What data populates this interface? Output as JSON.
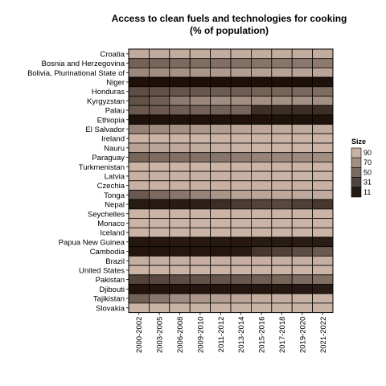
{
  "chart_data": {
    "type": "heatmap",
    "title": "Access to clean fuels and technologies for cooking",
    "subtitle": "(% of population)",
    "x_categories": [
      "2000-2002",
      "2003-2005",
      "2006-2008",
      "2009-2010",
      "2011-2012",
      "2013-2014",
      "2015-2016",
      "2017-2018",
      "2019-2020",
      "2021-2022"
    ],
    "y_categories": [
      "Croatia",
      "Bosnia and Herzegovina",
      "Bolivia, Plurinational State of",
      "Niger",
      "Honduras",
      "Kyrgyzstan",
      "Palau",
      "Ethiopia",
      "El Salvador",
      "Ireland",
      "Nauru",
      "Paraguay",
      "Turkmenistan",
      "Latvia",
      "Czechia",
      "Tonga",
      "Nepal",
      "Seychelles",
      "Monaco",
      "Iceland",
      "Papua New Guinea",
      "Cambodia",
      "Brazil",
      "United States",
      "Pakistan",
      "Djibouti",
      "Tajikistan",
      "Slovakia"
    ],
    "values": [
      [
        93,
        93,
        94,
        94,
        94,
        94,
        94,
        94,
        94,
        94
      ],
      [
        50,
        52,
        55,
        57,
        58,
        59,
        61,
        62,
        63,
        64
      ],
      [
        72,
        76,
        79,
        81,
        83,
        85,
        87,
        88,
        89,
        90
      ],
      [
        2,
        2,
        2,
        2,
        2,
        2,
        2,
        2,
        2,
        3
      ],
      [
        38,
        40,
        42,
        44,
        46,
        48,
        50,
        52,
        54,
        56
      ],
      [
        40,
        48,
        65,
        72,
        75,
        76,
        77,
        77,
        77,
        77
      ],
      [
        45,
        45,
        48,
        50,
        50,
        52,
        20,
        20,
        20,
        20
      ],
      [
        3,
        3,
        3,
        3,
        3,
        3,
        3,
        3,
        3,
        3
      ],
      [
        70,
        74,
        78,
        82,
        86,
        90,
        92,
        93,
        93,
        93
      ],
      [
        99,
        99,
        99,
        99,
        99,
        99,
        99,
        99,
        99,
        99
      ],
      [
        88,
        90,
        92,
        94,
        96,
        98,
        99,
        99,
        99,
        99
      ],
      [
        52,
        56,
        58,
        60,
        62,
        66,
        70,
        72,
        74,
        76
      ],
      [
        99,
        99,
        99,
        99,
        99,
        99,
        99,
        99,
        99,
        99
      ],
      [
        97,
        97,
        97,
        97,
        97,
        97,
        98,
        98,
        98,
        98
      ],
      [
        97,
        97,
        97,
        97,
        97,
        97,
        97,
        97,
        97,
        97
      ],
      [
        45,
        55,
        62,
        70,
        80,
        88,
        90,
        92,
        92,
        93
      ],
      [
        8,
        8,
        9,
        12,
        20,
        28,
        32,
        35,
        30,
        25
      ],
      [
        99,
        99,
        99,
        99,
        99,
        99,
        99,
        99,
        99,
        99
      ],
      [
        99,
        99,
        99,
        99,
        99,
        99,
        99,
        99,
        99,
        99
      ],
      [
        99,
        99,
        99,
        99,
        99,
        99,
        99,
        99,
        99,
        99
      ],
      [
        6,
        6,
        7,
        7,
        7,
        7,
        8,
        8,
        9,
        9
      ],
      [
        5,
        5,
        6,
        6,
        6,
        8,
        25,
        30,
        38,
        45
      ],
      [
        95,
        95,
        96,
        96,
        96,
        96,
        96,
        96,
        96,
        96
      ],
      [
        99,
        99,
        99,
        99,
        99,
        99,
        99,
        99,
        99,
        99
      ],
      [
        32,
        35,
        38,
        40,
        42,
        44,
        48,
        52,
        55,
        58
      ],
      [
        5,
        5,
        5,
        6,
        6,
        6,
        6,
        7,
        7,
        8
      ],
      [
        50,
        62,
        75,
        82,
        86,
        90,
        94,
        96,
        97,
        98
      ],
      [
        98,
        98,
        98,
        98,
        98,
        98,
        98,
        98,
        98,
        98
      ]
    ],
    "value_range": [
      0,
      100
    ],
    "legend": {
      "title": "Size",
      "position": "right",
      "entries": [
        {
          "label": "90",
          "color": "#c6b1a4"
        },
        {
          "label": "70",
          "color": "#a18f84"
        },
        {
          "label": "50",
          "color": "#786a61"
        },
        {
          "label": "31",
          "color": "#4e4440"
        },
        {
          "label": "11",
          "color": "#241b16"
        }
      ]
    },
    "color_scale": {
      "low": "#1a0d06",
      "high": "#cdb6a8"
    }
  }
}
